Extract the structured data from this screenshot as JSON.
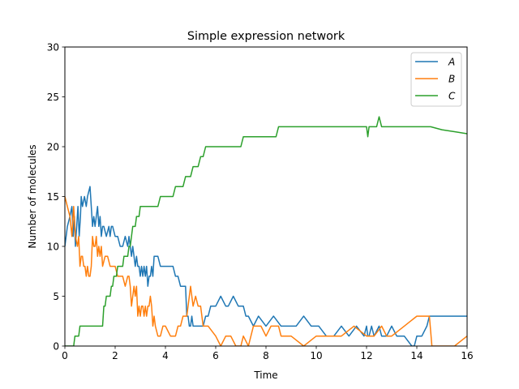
{
  "chart_data": {
    "type": "line",
    "title": "Simple expression network",
    "xlabel": "Time",
    "ylabel": "Number of molecules",
    "xlim": [
      0,
      16
    ],
    "ylim": [
      0,
      30
    ],
    "xticks": [
      0,
      2,
      4,
      6,
      8,
      10,
      12,
      14,
      16
    ],
    "xtick_labels": [
      "0",
      "2",
      "4",
      "6",
      "8",
      "10",
      "12",
      "14",
      "16"
    ],
    "yticks": [
      0,
      5,
      10,
      15,
      20,
      25,
      30
    ],
    "ytick_labels": [
      "0",
      "5",
      "10",
      "15",
      "20",
      "25",
      "30"
    ],
    "grid": false,
    "legend_position": "top-right",
    "series": [
      {
        "name": "A",
        "color": "#1f77b4",
        "x": [
          0,
          0.1,
          0.2,
          0.28,
          0.33,
          0.38,
          0.42,
          0.47,
          0.52,
          0.57,
          0.62,
          0.65,
          0.7,
          0.78,
          0.85,
          0.9,
          1.0,
          1.05,
          1.1,
          1.15,
          1.2,
          1.25,
          1.3,
          1.35,
          1.4,
          1.45,
          1.5,
          1.55,
          1.65,
          1.75,
          1.8,
          1.85,
          1.9,
          2.0,
          2.1,
          2.2,
          2.3,
          2.4,
          2.5,
          2.55,
          2.6,
          2.65,
          2.7,
          2.75,
          2.8,
          2.85,
          2.9,
          2.95,
          3.0,
          3.05,
          3.1,
          3.15,
          3.2,
          3.25,
          3.3,
          3.35,
          3.4,
          3.45,
          3.5,
          3.55,
          3.6,
          3.65,
          3.7,
          3.8,
          3.9,
          4.0,
          4.1,
          4.2,
          4.3,
          4.4,
          4.5,
          4.6,
          4.7,
          4.8,
          4.85,
          4.9,
          4.95,
          5.0,
          5.05,
          5.1,
          5.3,
          5.5,
          5.6,
          5.7,
          5.8,
          5.9,
          6.0,
          6.2,
          6.4,
          6.5,
          6.7,
          6.9,
          7.0,
          7.1,
          7.2,
          7.3,
          7.5,
          7.7,
          8.0,
          8.3,
          8.6,
          8.9,
          9.2,
          9.5,
          9.8,
          10.1,
          10.4,
          10.7,
          11.0,
          11.3,
          11.6,
          11.9,
          12.0,
          12.05,
          12.1,
          12.2,
          12.3,
          12.5,
          12.6,
          12.8,
          13.0,
          13.2,
          13.5,
          13.8,
          13.9,
          14.0,
          14.2,
          14.4,
          14.5,
          14.55,
          14.6,
          15.0,
          15.5,
          16.0
        ],
        "y": [
          10,
          12,
          13,
          14,
          11,
          13,
          10,
          12,
          14,
          11,
          13,
          15,
          14,
          15,
          14,
          15,
          16,
          14,
          12,
          13,
          12,
          13,
          14,
          12,
          13,
          11,
          12,
          12,
          11,
          12,
          11,
          12,
          12,
          11,
          11,
          10,
          10,
          11,
          10,
          11,
          10,
          9,
          10,
          9,
          8,
          9,
          8,
          8,
          7,
          8,
          7,
          8,
          7,
          8,
          6,
          7,
          7,
          8,
          7,
          9,
          9,
          9,
          9,
          8,
          8,
          8,
          8,
          8,
          8,
          7,
          7,
          6,
          6,
          6,
          3,
          3,
          2,
          2,
          3,
          2,
          2,
          2,
          3,
          3,
          4,
          4,
          4,
          5,
          4,
          4,
          5,
          4,
          4,
          4,
          3,
          3,
          2,
          3,
          2,
          3,
          2,
          2,
          2,
          3,
          2,
          2,
          1,
          1,
          2,
          1,
          2,
          1,
          2,
          1,
          1,
          2,
          1,
          2,
          1,
          1,
          2,
          1,
          1,
          0,
          0,
          1,
          1,
          2,
          3,
          3,
          3,
          3,
          3,
          3
        ]
      },
      {
        "name": "B",
        "color": "#ff7f0e",
        "x": [
          0,
          0.1,
          0.2,
          0.28,
          0.35,
          0.42,
          0.5,
          0.55,
          0.6,
          0.65,
          0.7,
          0.75,
          0.8,
          0.85,
          0.9,
          0.95,
          1.0,
          1.05,
          1.1,
          1.15,
          1.2,
          1.25,
          1.3,
          1.35,
          1.4,
          1.45,
          1.5,
          1.6,
          1.7,
          1.8,
          1.9,
          2.0,
          2.1,
          2.2,
          2.3,
          2.4,
          2.5,
          2.55,
          2.6,
          2.65,
          2.7,
          2.75,
          2.8,
          2.85,
          2.9,
          2.95,
          3.0,
          3.05,
          3.1,
          3.15,
          3.2,
          3.25,
          3.3,
          3.35,
          3.4,
          3.45,
          3.5,
          3.55,
          3.6,
          3.7,
          3.8,
          3.9,
          4.0,
          4.2,
          4.4,
          4.5,
          4.6,
          4.7,
          4.8,
          4.85,
          4.9,
          4.95,
          5.0,
          5.1,
          5.2,
          5.3,
          5.4,
          5.5,
          5.6,
          5.7,
          6.0,
          6.2,
          6.4,
          6.6,
          6.8,
          7.0,
          7.1,
          7.3,
          7.5,
          7.8,
          8.0,
          8.2,
          8.5,
          8.6,
          9.0,
          9.5,
          10.0,
          10.5,
          11.0,
          11.5,
          12.0,
          12.1,
          12.2,
          12.3,
          12.6,
          12.8,
          13.0,
          13.5,
          14.0,
          14.2,
          14.4,
          14.5,
          14.6,
          15.0,
          15.5,
          16.0
        ],
        "y": [
          15,
          14,
          13,
          11,
          14,
          11,
          10,
          11,
          8,
          9,
          9,
          8,
          8,
          7,
          8,
          7,
          7,
          8,
          11,
          10,
          10,
          11,
          9,
          10,
          9,
          10,
          8,
          9,
          9,
          8,
          8,
          8,
          7,
          7,
          7,
          6,
          7,
          7,
          6,
          4,
          5,
          6,
          5,
          6,
          3,
          4,
          3,
          4,
          4,
          3,
          4,
          3,
          4,
          4,
          5,
          4,
          2,
          3,
          2,
          1,
          1,
          2,
          2,
          1,
          1,
          2,
          2,
          3,
          3,
          3,
          4,
          5,
          6,
          4,
          5,
          4,
          4,
          2,
          2,
          2,
          1,
          0,
          1,
          1,
          0,
          0,
          1,
          0,
          2,
          2,
          1,
          2,
          2,
          1,
          1,
          0,
          1,
          1,
          1,
          2,
          1,
          1,
          1,
          1,
          2,
          1,
          1,
          2,
          3,
          3,
          3,
          3,
          0,
          0,
          0,
          1
        ]
      },
      {
        "name": "C",
        "color": "#2ca02c",
        "x": [
          0,
          0.3,
          0.35,
          0.4,
          0.45,
          0.5,
          0.55,
          0.6,
          0.65,
          0.7,
          0.8,
          1.0,
          1.2,
          1.4,
          1.5,
          1.55,
          1.6,
          1.65,
          1.7,
          1.75,
          1.8,
          1.85,
          1.9,
          1.95,
          2.0,
          2.05,
          2.1,
          2.15,
          2.2,
          2.25,
          2.3,
          2.35,
          2.4,
          2.5,
          2.55,
          2.6,
          2.65,
          2.7,
          2.75,
          2.8,
          2.85,
          2.9,
          2.95,
          3.0,
          3.05,
          3.1,
          3.2,
          3.3,
          3.4,
          3.5,
          3.6,
          3.7,
          3.8,
          3.9,
          4.0,
          4.1,
          4.2,
          4.3,
          4.4,
          4.5,
          4.6,
          4.7,
          4.8,
          4.9,
          5.0,
          5.1,
          5.2,
          5.3,
          5.4,
          5.5,
          5.6,
          5.7,
          5.8,
          6.0,
          6.2,
          6.4,
          6.6,
          6.8,
          7.0,
          7.1,
          7.2,
          7.4,
          7.6,
          7.8,
          8.0,
          8.2,
          8.4,
          8.5,
          8.55,
          8.6,
          9.0,
          9.5,
          10.0,
          10.5,
          11.0,
          11.5,
          12.0,
          12.05,
          12.1,
          12.2,
          12.3,
          12.4,
          12.5,
          12.6,
          13.0,
          13.5,
          14.0,
          14.5,
          14.55,
          15.0,
          15.5,
          16.0
        ],
        "y": [
          0,
          0,
          0,
          1,
          1,
          1,
          1,
          2,
          2,
          2,
          2,
          2,
          2,
          2,
          2,
          4,
          4,
          5,
          5,
          5,
          5,
          6,
          6,
          7,
          7,
          7,
          8,
          8,
          8,
          8,
          8,
          9,
          9,
          9,
          10,
          10,
          11,
          12,
          12,
          12,
          13,
          13,
          13,
          14,
          14,
          14,
          14,
          14,
          14,
          14,
          14,
          14,
          15,
          15,
          15,
          15,
          15,
          15,
          16,
          16,
          16,
          16,
          17,
          17,
          17,
          18,
          18,
          18,
          19,
          19,
          20,
          20,
          20,
          20,
          20,
          20,
          20,
          20,
          20,
          21,
          21,
          21,
          21,
          21,
          21,
          21,
          21,
          22,
          22,
          22,
          22,
          22,
          22,
          22,
          22,
          22,
          22,
          21,
          22,
          22,
          22,
          22,
          23,
          22,
          22,
          22,
          22,
          22,
          22,
          21.7,
          21.5,
          21.3
        ]
      }
    ]
  }
}
